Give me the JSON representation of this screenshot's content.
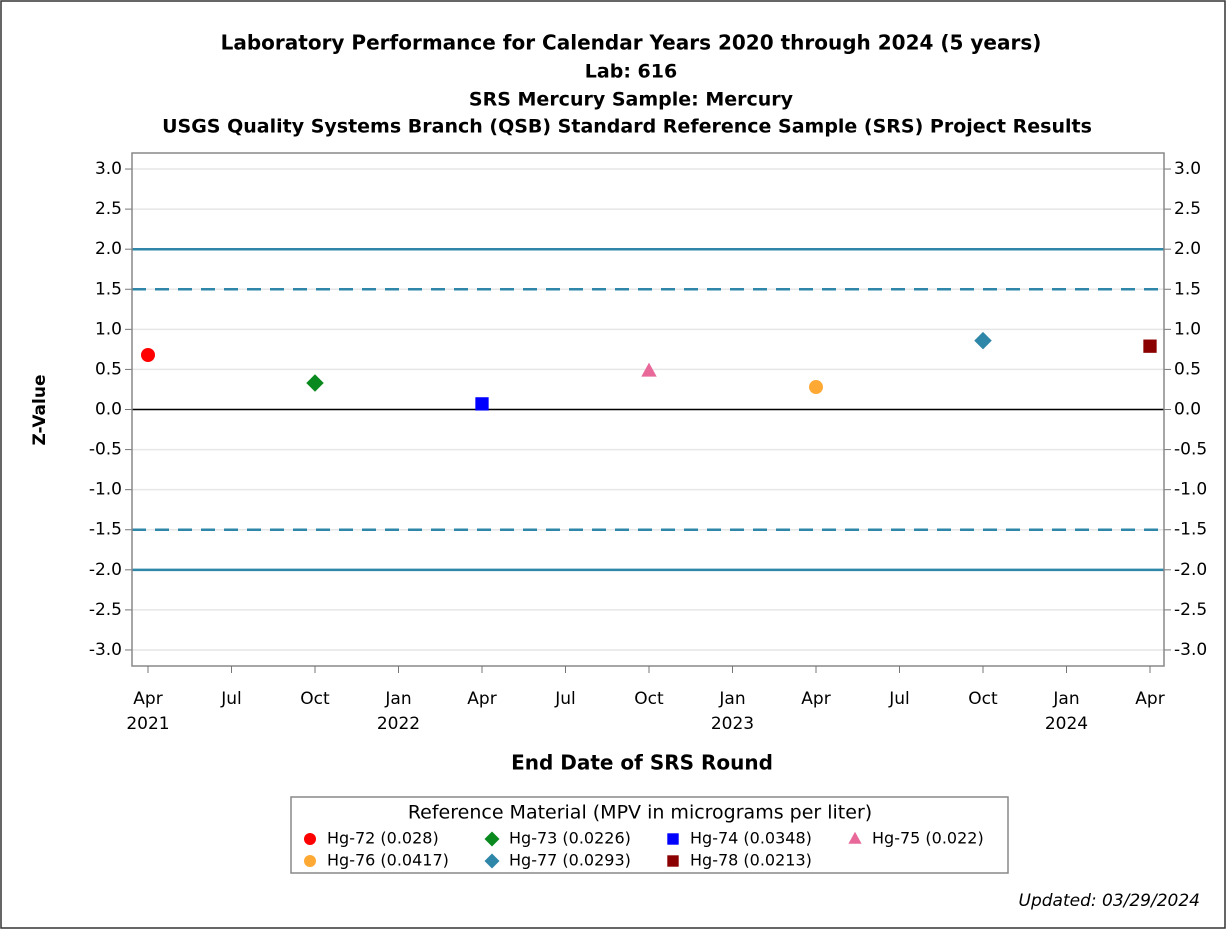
{
  "chart_data": {
    "type": "scatter",
    "title": "Laboratory Performance for Calendar Years 2020 through 2024 (5 years)",
    "subtitles": [
      "Lab: 616",
      "SRS Mercury Sample:  Mercury",
      "USGS Quality Systems Branch (QSB) Standard Reference Sample (SRS) Project Results"
    ],
    "x_label": "End Date of SRS Round",
    "y_label": "Z-Value",
    "legend_title": "Reference Material (MPV in micrograms per liter)",
    "footnote": "Updated: 03/29/2024",
    "xlim": [
      "2021-04",
      "2024-04"
    ],
    "xticks": [
      {
        "value": "2021-04",
        "label": "Apr\n2021"
      },
      {
        "value": "2021-07",
        "label": "Jul"
      },
      {
        "value": "2021-10",
        "label": "Oct"
      },
      {
        "value": "2022-01",
        "label": "Jan\n2022"
      },
      {
        "value": "2022-04",
        "label": "Apr"
      },
      {
        "value": "2022-07",
        "label": "Jul"
      },
      {
        "value": "2022-10",
        "label": "Oct"
      },
      {
        "value": "2023-01",
        "label": "Jan\n2023"
      },
      {
        "value": "2023-04",
        "label": "Apr"
      },
      {
        "value": "2023-07",
        "label": "Jul"
      },
      {
        "value": "2023-10",
        "label": "Oct"
      },
      {
        "value": "2024-01",
        "label": "Jan\n2024"
      },
      {
        "value": "2024-04",
        "label": "Apr"
      }
    ],
    "ylim": [
      -3.2,
      3.2
    ],
    "yticks": [
      {
        "value": 3,
        "label": "3.0"
      },
      2.5,
      {
        "value": 2,
        "label": "2.0"
      },
      1.5,
      {
        "value": 1,
        "label": "1.0"
      },
      0.5,
      {
        "value": 0,
        "label": "0.0"
      },
      -0.5,
      {
        "value": -1,
        "label": "-1.0"
      },
      -1.5,
      {
        "value": -2,
        "label": "-2.0"
      },
      -2.5,
      {
        "value": -3,
        "label": "-3.0"
      }
    ],
    "grid": true,
    "reference_lines": [
      {
        "value": 2,
        "style": "solid"
      },
      {
        "value": 1.5,
        "style": "dashed"
      },
      {
        "value": -1.5,
        "style": "dashed"
      },
      {
        "value": -2,
        "style": "solid"
      }
    ],
    "series": [
      {
        "name": "Hg-72 (0.028)",
        "color": "#ff0000",
        "marker": "circle",
        "x": [
          "2021-04"
        ],
        "values": [
          0.68
        ]
      },
      {
        "name": "Hg-73 (0.0226)",
        "color": "#0a8a1e",
        "marker": "diamond",
        "x": [
          "2021-10"
        ],
        "values": [
          0.33
        ]
      },
      {
        "name": "Hg-74 (0.0348)",
        "color": "#0000ff",
        "marker": "square",
        "x": [
          "2022-04"
        ],
        "values": [
          0.07
        ]
      },
      {
        "name": "Hg-75 (0.022)",
        "color": "#e8689a",
        "marker": "triangle",
        "x": [
          "2022-10"
        ],
        "values": [
          0.48
        ]
      },
      {
        "name": "Hg-76 (0.0417)",
        "color": "#ffa935",
        "marker": "circle",
        "x": [
          "2023-04"
        ],
        "values": [
          0.28
        ]
      },
      {
        "name": "Hg-77 (0.0293)",
        "color": "#2e87a8",
        "marker": "diamond",
        "x": [
          "2023-10"
        ],
        "values": [
          0.86
        ]
      },
      {
        "name": "Hg-78 (0.0213)",
        "color": "#8b0000",
        "marker": "square",
        "x": [
          "2024-04"
        ],
        "values": [
          0.79
        ]
      }
    ]
  }
}
